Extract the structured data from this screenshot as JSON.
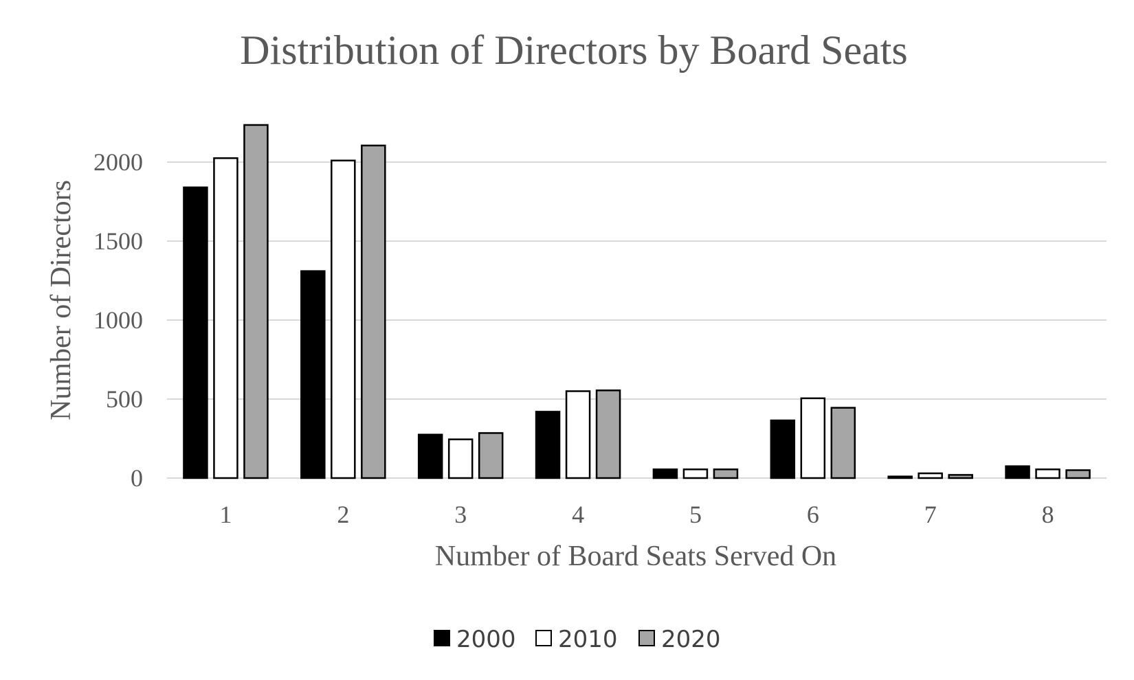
{
  "chart_data": {
    "type": "bar",
    "title": "Distribution of Directors by Board Seats",
    "xlabel": "Number of Board Seats Served On",
    "ylabel": "Number of Directors",
    "categories": [
      "1",
      "2",
      "3",
      "4",
      "5",
      "6",
      "7",
      "8"
    ],
    "series": [
      {
        "name": "2000",
        "color": "#000000",
        "values": [
          1840,
          1310,
          275,
          420,
          55,
          365,
          10,
          75
        ]
      },
      {
        "name": "2010",
        "color": "#ffffff",
        "values": [
          2025,
          2010,
          245,
          550,
          55,
          505,
          30,
          55
        ]
      },
      {
        "name": "2020",
        "color": "#a6a6a6",
        "values": [
          2235,
          2105,
          285,
          555,
          55,
          445,
          20,
          50
        ]
      }
    ],
    "yticks": [
      0,
      500,
      1000,
      1500,
      2000
    ],
    "ylim": [
      0,
      2300
    ],
    "grid": true,
    "legend_position": "bottom"
  }
}
